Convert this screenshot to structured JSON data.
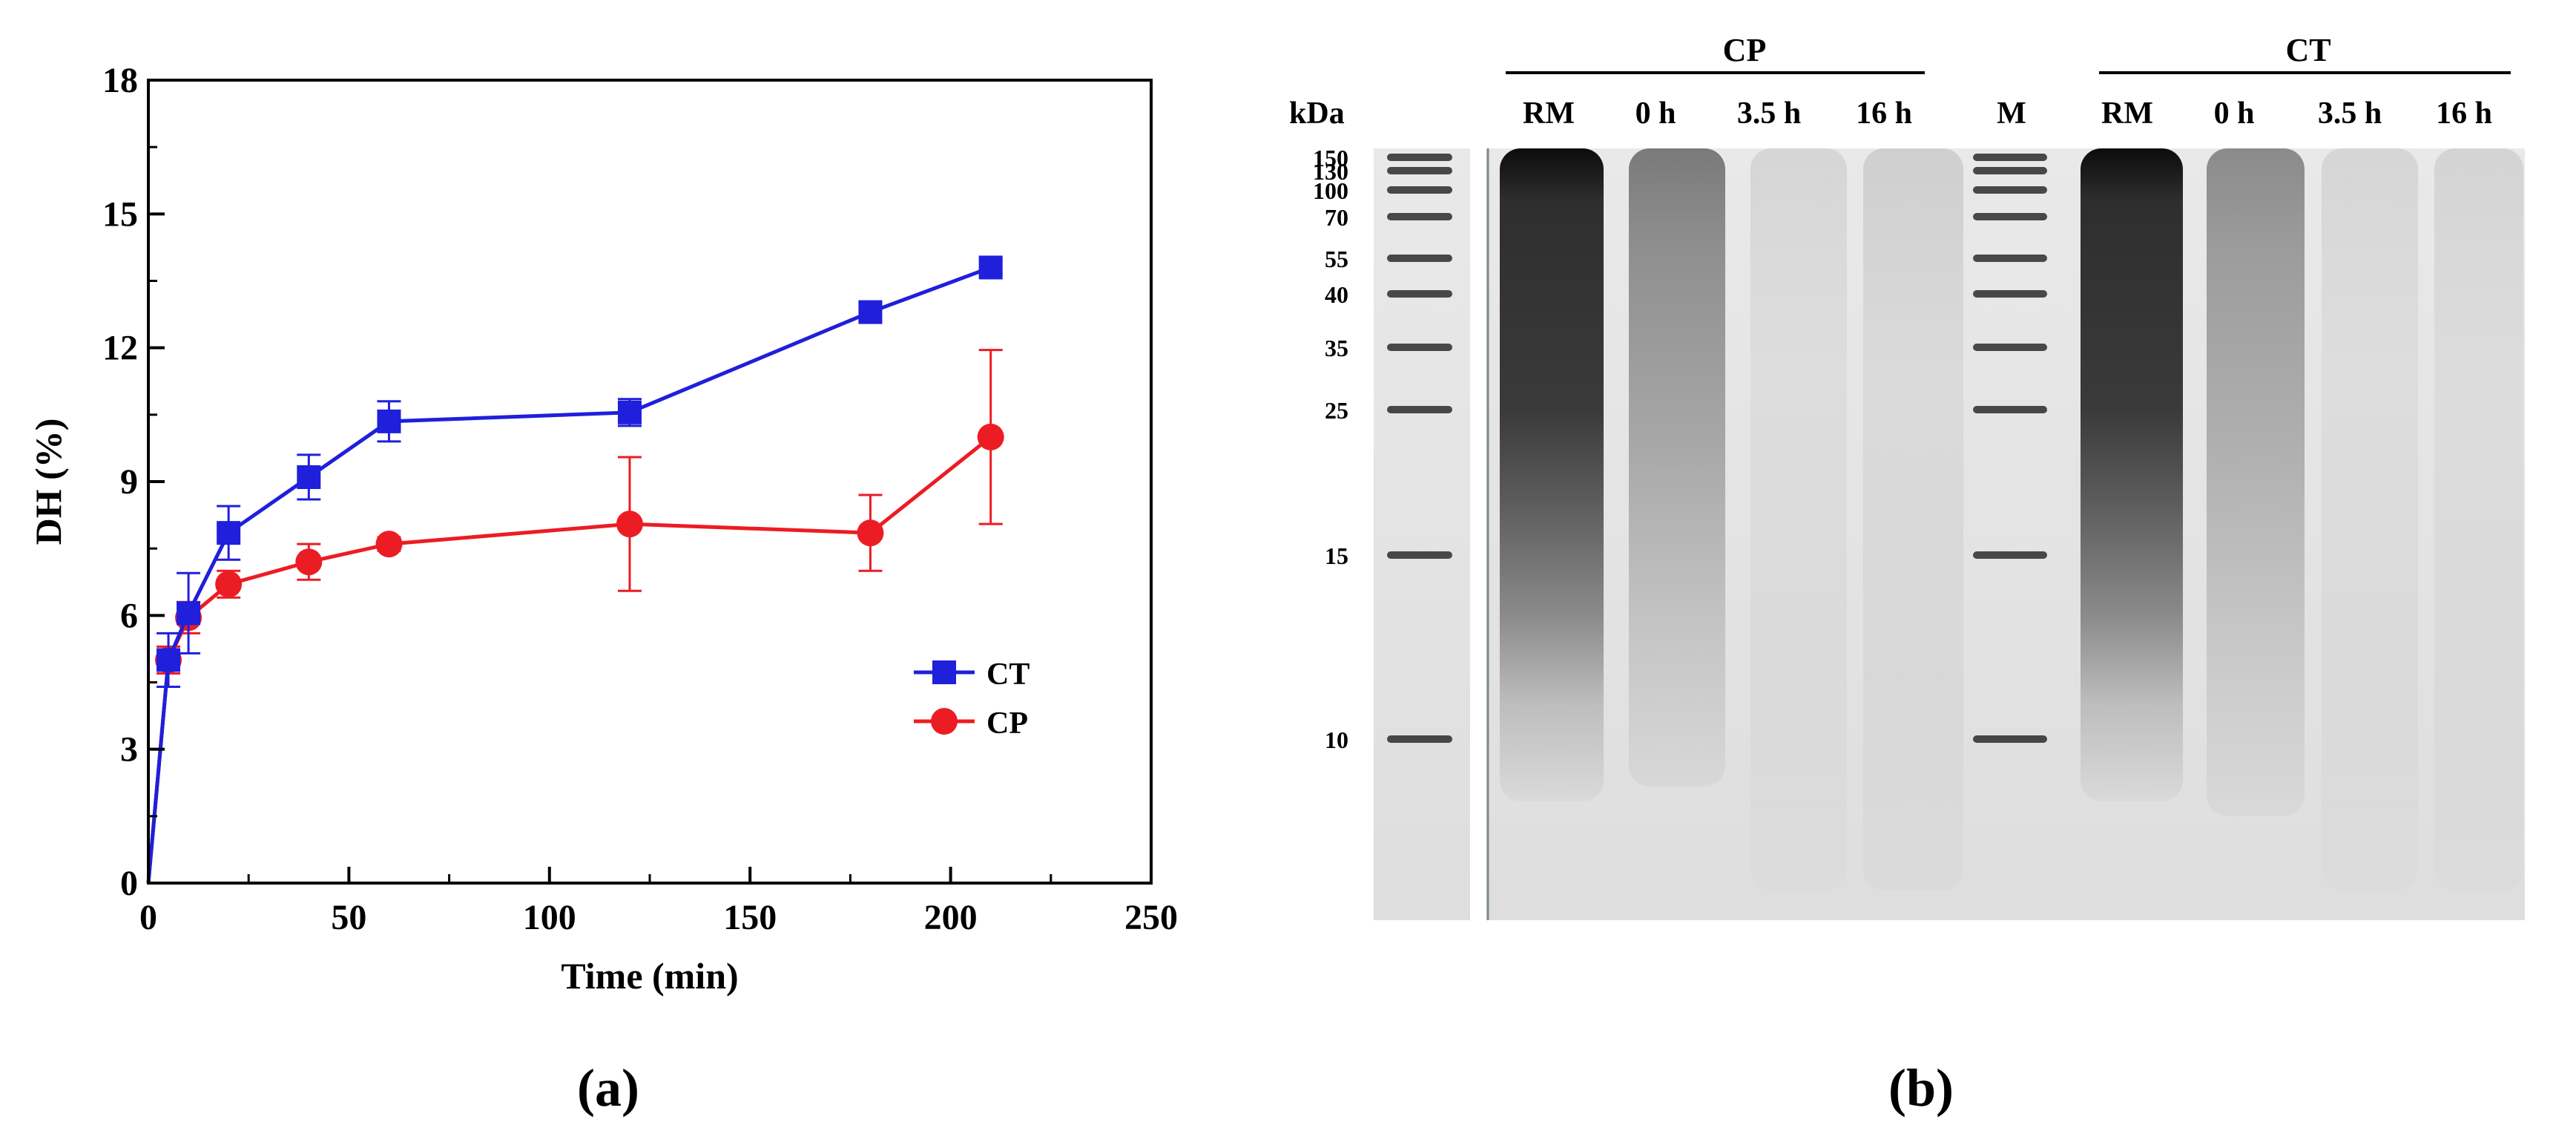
{
  "chart_data": [
    {
      "type": "line",
      "panel_label": "(a)",
      "xlabel": "Time (min)",
      "ylabel": "DH (%)",
      "xlim": [
        0,
        250
      ],
      "ylim": [
        0,
        18
      ],
      "x_ticks": [
        0,
        50,
        100,
        150,
        200,
        250
      ],
      "y_ticks": [
        0,
        3,
        6,
        9,
        12,
        15,
        18
      ],
      "grid": false,
      "legend_position": "right",
      "series": [
        {
          "name": "CT",
          "color": "#1f1fdc",
          "marker": "square",
          "x": [
            0,
            5,
            10,
            20,
            40,
            60,
            120,
            180,
            210
          ],
          "y": [
            0,
            5.0,
            6.05,
            7.85,
            9.1,
            10.35,
            10.55,
            12.8,
            13.8
          ],
          "error": [
            0,
            0.6,
            0.9,
            0.6,
            0.5,
            0.45,
            0.3,
            0.2,
            0.15
          ]
        },
        {
          "name": "CP",
          "color": "#ec1c24",
          "marker": "circle",
          "x": [
            0,
            5,
            10,
            20,
            40,
            60,
            120,
            180,
            210
          ],
          "y": [
            0,
            5.0,
            5.95,
            6.7,
            7.2,
            7.6,
            8.05,
            7.85,
            10.0
          ],
          "error": [
            0,
            0.3,
            0.35,
            0.3,
            0.4,
            0.15,
            1.5,
            0.85,
            1.95
          ]
        }
      ]
    }
  ],
  "gel": {
    "panel_label": "(b)",
    "kda_label": "kDa",
    "group_cp": "CP",
    "group_ct": "CT",
    "lane_labels_cp": [
      "RM",
      "0 h",
      "3.5 h",
      "16 h"
    ],
    "marker_lane_label": "M",
    "lane_labels_ct": [
      "RM",
      "0 h",
      "3.5 h",
      "16 h"
    ],
    "marker_sizes": [
      "150",
      "130",
      "100",
      "70",
      "55",
      "40",
      "35",
      "25",
      "15",
      "10"
    ]
  }
}
